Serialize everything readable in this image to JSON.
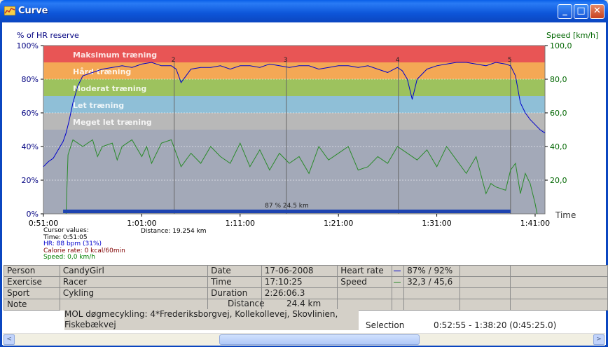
{
  "window": {
    "title": "Curve",
    "minimize": "_",
    "maximize": "□",
    "close": "✕"
  },
  "chart_data": {
    "type": "line",
    "left_axis_label": "% of HR reserve",
    "right_axis_label": "Speed [km/h]",
    "x_axis_label": "Time",
    "left_ticks": [
      "100%",
      "80%",
      "60%",
      "40%",
      "20%",
      "0%"
    ],
    "right_ticks": [
      "100,0",
      "80,0",
      "60,0",
      "40,0",
      "20,0"
    ],
    "x_ticks": [
      "0:51:00",
      "1:01:00",
      "1:11:00",
      "1:21:00",
      "1:31:00",
      "1:41:00"
    ],
    "x_range_minutes": [
      51,
      102
    ],
    "ylim_left": [
      0,
      100
    ],
    "ylim_right": [
      0,
      100
    ],
    "zones": [
      {
        "label": "Maksimum træning",
        "from": 90,
        "to": 100,
        "color": "#E85555"
      },
      {
        "label": "Hård træning",
        "from": 80,
        "to": 90,
        "color": "#F4A855"
      },
      {
        "label": "Moderat træning",
        "from": 70,
        "to": 80,
        "color": "#9DC25E"
      },
      {
        "label": "Let træning",
        "from": 60,
        "to": 70,
        "color": "#8FBFD7"
      },
      {
        "label": "Meget let træning",
        "from": 50,
        "to": 60,
        "color": "#B8B8B8"
      },
      {
        "label": "",
        "from": 0,
        "to": 50,
        "color": "#A3A9B8"
      }
    ],
    "laps": [
      {
        "label": "2",
        "t": 64.3
      },
      {
        "label": "3",
        "t": 75.7
      },
      {
        "label": "4",
        "t": 87.1
      },
      {
        "label": "5",
        "t": 98.5
      }
    ],
    "selection_bar_label": "87 % 24.5 km",
    "series": [
      {
        "name": "Heart rate",
        "axis": "left",
        "color": "#0000CC",
        "points": [
          [
            51,
            28
          ],
          [
            51.5,
            31
          ],
          [
            52,
            33
          ],
          [
            52.5,
            38
          ],
          [
            53,
            43
          ],
          [
            53.3,
            48
          ],
          [
            53.6,
            55
          ],
          [
            54,
            66
          ],
          [
            54.5,
            76
          ],
          [
            55,
            82
          ],
          [
            56,
            84
          ],
          [
            57,
            86
          ],
          [
            58,
            87
          ],
          [
            59,
            88
          ],
          [
            60,
            87
          ],
          [
            61,
            89
          ],
          [
            62,
            90
          ],
          [
            63,
            88
          ],
          [
            64,
            88
          ],
          [
            64.5,
            86
          ],
          [
            65,
            78
          ],
          [
            65.5,
            82
          ],
          [
            66,
            86
          ],
          [
            67,
            87
          ],
          [
            68,
            87
          ],
          [
            69,
            88
          ],
          [
            70,
            86
          ],
          [
            71,
            88
          ],
          [
            72,
            88
          ],
          [
            73,
            87
          ],
          [
            74,
            89
          ],
          [
            75,
            88
          ],
          [
            76,
            87
          ],
          [
            77,
            88
          ],
          [
            78,
            88
          ],
          [
            79,
            86
          ],
          [
            80,
            87
          ],
          [
            81,
            88
          ],
          [
            82,
            88
          ],
          [
            83,
            87
          ],
          [
            84,
            88
          ],
          [
            85,
            86
          ],
          [
            86,
            84
          ],
          [
            87,
            87
          ],
          [
            87.5,
            85
          ],
          [
            88,
            80
          ],
          [
            88.5,
            68
          ],
          [
            89,
            80
          ],
          [
            90,
            86
          ],
          [
            91,
            88
          ],
          [
            92,
            89
          ],
          [
            93,
            90
          ],
          [
            94,
            90
          ],
          [
            95,
            89
          ],
          [
            96,
            88
          ],
          [
            97,
            90
          ],
          [
            98,
            89
          ],
          [
            98.5,
            88
          ],
          [
            99,
            82
          ],
          [
            99.5,
            66
          ],
          [
            100,
            60
          ],
          [
            100.5,
            56
          ],
          [
            101,
            53
          ],
          [
            101.5,
            50
          ],
          [
            102,
            48
          ]
        ]
      },
      {
        "name": "Speed",
        "axis": "right",
        "color": "#2A8A2A",
        "points": [
          [
            53.3,
            0
          ],
          [
            53.5,
            35
          ],
          [
            54,
            44
          ],
          [
            55,
            40
          ],
          [
            56,
            44
          ],
          [
            56.5,
            34
          ],
          [
            57,
            40
          ],
          [
            58,
            42
          ],
          [
            58.5,
            32
          ],
          [
            59,
            40
          ],
          [
            60,
            44
          ],
          [
            61,
            34
          ],
          [
            61.5,
            40
          ],
          [
            62,
            30
          ],
          [
            63,
            42
          ],
          [
            64,
            44
          ],
          [
            65,
            28
          ],
          [
            66,
            36
          ],
          [
            67,
            30
          ],
          [
            68,
            40
          ],
          [
            69,
            34
          ],
          [
            70,
            30
          ],
          [
            71,
            42
          ],
          [
            72,
            28
          ],
          [
            73,
            38
          ],
          [
            74,
            26
          ],
          [
            75,
            36
          ],
          [
            76,
            30
          ],
          [
            77,
            34
          ],
          [
            78,
            24
          ],
          [
            79,
            40
          ],
          [
            80,
            32
          ],
          [
            81,
            36
          ],
          [
            82,
            40
          ],
          [
            83,
            26
          ],
          [
            84,
            28
          ],
          [
            85,
            34
          ],
          [
            86,
            30
          ],
          [
            87,
            40
          ],
          [
            88,
            36
          ],
          [
            89,
            32
          ],
          [
            90,
            38
          ],
          [
            91,
            28
          ],
          [
            92,
            40
          ],
          [
            93,
            32
          ],
          [
            94,
            24
          ],
          [
            95,
            34
          ],
          [
            96,
            12
          ],
          [
            96.5,
            18
          ],
          [
            97,
            16
          ],
          [
            98,
            14
          ],
          [
            98.5,
            26
          ],
          [
            99,
            30
          ],
          [
            99.5,
            12
          ],
          [
            100,
            24
          ],
          [
            100.5,
            18
          ],
          [
            101,
            6
          ],
          [
            101.2,
            0
          ]
        ]
      }
    ]
  },
  "cursor": {
    "header": "Cursor values:",
    "time": "Time: 0:51:05",
    "hr": "HR: 88 bpm (31%)",
    "calorie": "Calorie rate: 0 kcal/60min",
    "speed": "Speed: 0,0 km/h",
    "distance": "Distance: 19.254 km"
  },
  "info": {
    "person_label": "Person",
    "person": "CandyGirl",
    "exercise_label": "Exercise",
    "exercise": "Racer",
    "sport_label": "Sport",
    "sport": "Cykling",
    "note_label": "Note",
    "note": "MOL døgmecykling: 4*Frederiksborgvej, Kollekollevej, Skovlinien, Fiskebækvej",
    "date_label": "Date",
    "date": "17-06-2008",
    "time_label": "Time",
    "time": "17:10:25",
    "duration_label": "Duration",
    "duration": "2:26:06.3",
    "distance_label": "Distance",
    "distance": "24.4 km",
    "hr_label": "Heart rate",
    "hr": "87% / 92%",
    "hr_color": "#0000CC",
    "speed_label": "Speed",
    "speed": "32,3 / 45,6",
    "speed_color": "#2A8A2A",
    "selection_label": "Selection",
    "selection": "0:52:55 - 1:38:20 (0:45:25.0)"
  },
  "scrollbar": {
    "left_arrow": "<",
    "right_arrow": ">"
  }
}
